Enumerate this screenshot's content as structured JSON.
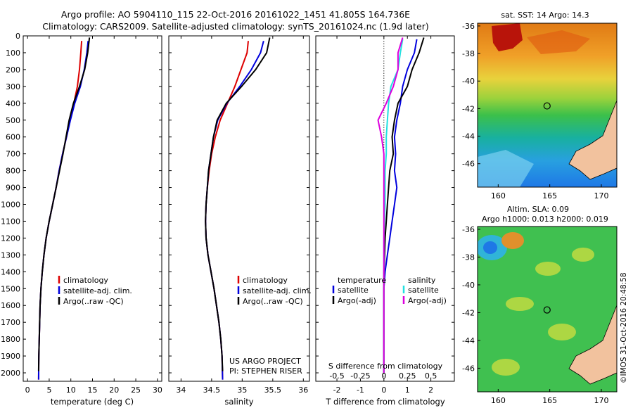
{
  "header": {
    "title_line1": "Argo profile: AO 5904110_115 22-Oct-2016 20161022_1451 41.805S 164.736E",
    "title_line2": "Climatology: CARS2009. Satellite-adjusted climatology: synTS_20161024.nc (1.9d later)"
  },
  "colors": {
    "climatology": "#dd0000",
    "satellite": "#0000dd",
    "argo": "#000000",
    "satellite_salinity": "#22e0e0",
    "argo_salinity": "#dd00dd",
    "land": "#f2c29e"
  },
  "legend_profiles": {
    "climatology": "climatology",
    "satellite": "satellite-adj. clim.",
    "argo": "Argo(..raw -QC)"
  },
  "legend_diff": {
    "temp_header": "temperature",
    "sal_header": "salinity",
    "satellite": "satellite",
    "argo": "Argo(-adj)"
  },
  "project": {
    "line1": "US ARGO PROJECT",
    "line2": "PI: STEPHEN RISER"
  },
  "credit": "©IMOS 31-Oct-2016 20:48:58",
  "chart_data": [
    {
      "type": "line",
      "xlabel": "temperature (deg C)",
      "xlim": [
        -1,
        31
      ],
      "xticks": [
        0,
        5,
        10,
        15,
        20,
        25,
        30
      ],
      "ylim": [
        2050,
        0
      ],
      "yticks": [
        0,
        100,
        200,
        300,
        400,
        500,
        600,
        700,
        800,
        900,
        1000,
        1100,
        1200,
        1300,
        1400,
        1500,
        1600,
        1700,
        1800,
        1900,
        2000
      ],
      "series": [
        {
          "name": "climatology",
          "key": "clim",
          "x": [
            12.5,
            12.3,
            12.0,
            11.5,
            10.7,
            9.8,
            9.0,
            8.1,
            7.3,
            6.6,
            5.8,
            5.0,
            4.3,
            3.8,
            3.4,
            3.1,
            2.9,
            2.8,
            2.7,
            2.6,
            2.55
          ],
          "y": [
            30,
            100,
            200,
            300,
            400,
            500,
            600,
            700,
            800,
            900,
            1000,
            1100,
            1200,
            1300,
            1400,
            1500,
            1600,
            1700,
            1800,
            1900,
            2040
          ]
        },
        {
          "name": "satellite-adj. clim.",
          "key": "sat",
          "x": [
            14.0,
            13.7,
            13.1,
            12.2,
            10.9,
            9.9,
            9.0,
            8.1,
            7.3,
            6.6,
            5.8,
            5.0,
            4.3,
            3.8,
            3.4,
            3.1,
            2.9,
            2.8,
            2.7,
            2.6,
            2.55
          ],
          "y": [
            30,
            100,
            200,
            300,
            400,
            500,
            600,
            700,
            800,
            900,
            1000,
            1100,
            1200,
            1300,
            1400,
            1500,
            1600,
            1700,
            1800,
            1900,
            2040
          ]
        },
        {
          "name": "Argo(..raw -QC)",
          "key": "argo",
          "x": [
            14.3,
            13.9,
            13.2,
            12.0,
            10.6,
            9.6,
            8.9,
            8.2,
            7.4,
            6.6,
            5.8,
            5.0,
            4.3,
            3.8,
            3.4,
            3.1,
            2.9,
            2.8,
            2.7,
            2.6,
            2.55
          ],
          "y": [
            10,
            100,
            200,
            300,
            400,
            500,
            600,
            700,
            800,
            900,
            1000,
            1100,
            1200,
            1300,
            1400,
            1500,
            1600,
            1700,
            1800,
            1900,
            1990
          ]
        }
      ]
    },
    {
      "type": "line",
      "xlabel": "salinity",
      "xlim": [
        33.8,
        36.1
      ],
      "xticks": [
        34,
        34.5,
        35,
        35.5,
        36
      ],
      "ylim": [
        2050,
        0
      ],
      "series": [
        {
          "name": "climatology",
          "key": "clim",
          "x": [
            35.1,
            35.08,
            34.98,
            34.88,
            34.76,
            34.64,
            34.56,
            34.5,
            34.46,
            34.43,
            34.41,
            34.4,
            34.41,
            34.44,
            34.49,
            34.54,
            34.58,
            34.62,
            34.65,
            34.67,
            34.68
          ],
          "y": [
            30,
            100,
            200,
            300,
            400,
            500,
            600,
            700,
            800,
            900,
            1000,
            1100,
            1200,
            1300,
            1400,
            1500,
            1600,
            1700,
            1800,
            1900,
            2040
          ]
        },
        {
          "name": "satellite-adj. clim.",
          "key": "sat",
          "x": [
            35.35,
            35.3,
            35.15,
            34.96,
            34.75,
            34.6,
            34.53,
            34.49,
            34.45,
            34.43,
            34.41,
            34.4,
            34.41,
            34.44,
            34.49,
            34.54,
            34.58,
            34.62,
            34.65,
            34.67,
            34.68
          ],
          "y": [
            30,
            100,
            200,
            300,
            400,
            500,
            600,
            700,
            800,
            900,
            1000,
            1100,
            1200,
            1300,
            1400,
            1500,
            1600,
            1700,
            1800,
            1900,
            2040
          ]
        },
        {
          "name": "Argo(..raw -QC)",
          "key": "argo",
          "x": [
            35.45,
            35.4,
            35.22,
            34.99,
            34.74,
            34.59,
            34.53,
            34.49,
            34.45,
            34.43,
            34.41,
            34.4,
            34.41,
            34.44,
            34.49,
            34.54,
            34.58,
            34.62,
            34.65,
            34.67,
            34.68
          ],
          "y": [
            10,
            100,
            200,
            300,
            400,
            500,
            600,
            700,
            800,
            900,
            1000,
            1100,
            1200,
            1300,
            1400,
            1500,
            1600,
            1700,
            1800,
            1900,
            1990
          ]
        }
      ]
    },
    {
      "type": "line",
      "xlabel": "T difference from climatology",
      "xlabel_top": "S difference from climatology",
      "xlim": [
        -2.9,
        3.0
      ],
      "xticks": [
        -2,
        -1,
        0,
        1,
        2
      ],
      "xticks_top": [
        {
          "label": "-0.5",
          "at": -2
        },
        {
          "label": "-0.25",
          "at": -1
        },
        {
          "label": "0",
          "at": 0
        },
        {
          "label": "0.25",
          "at": 1
        },
        {
          "label": "0.5",
          "at": 2
        }
      ],
      "ylim": [
        2050,
        0
      ],
      "series": [
        {
          "name": "satellite (temperature)",
          "key": "sat",
          "x": [
            1.4,
            1.3,
            1.0,
            0.8,
            0.7,
            0.55,
            0.45,
            0.5,
            0.45,
            0.55,
            0.45,
            0.35,
            0.25,
            0.15,
            0.05,
            0.0,
            0.0,
            0.0,
            0.0,
            0.0,
            0.0
          ],
          "y": [
            20,
            100,
            200,
            300,
            400,
            500,
            600,
            700,
            800,
            900,
            1000,
            1100,
            1200,
            1300,
            1400,
            1500,
            1600,
            1700,
            1800,
            1900,
            2000
          ]
        },
        {
          "name": "Argo(-adj) (temperature)",
          "key": "argo",
          "x": [
            1.7,
            1.5,
            1.2,
            1.0,
            0.6,
            0.45,
            0.35,
            0.4,
            0.25,
            0.2,
            0.15,
            0.1,
            0.05,
            0.03,
            0.0,
            0.0,
            0.0,
            0.0,
            0.0,
            0.0,
            0.0
          ],
          "y": [
            10,
            100,
            200,
            300,
            400,
            500,
            600,
            700,
            800,
            900,
            1000,
            1100,
            1200,
            1300,
            1400,
            1500,
            1600,
            1700,
            1800,
            1900,
            2000
          ]
        },
        {
          "name": "satellite (salinity)",
          "key": "ssat",
          "x": [
            0.8,
            0.7,
            0.6,
            0.3,
            0.2,
            0.15,
            0.1,
            0.1,
            0.05,
            0.05,
            0.05,
            0.02,
            0.0,
            0.0,
            0.0,
            0.0,
            0.0,
            0.0,
            0.0,
            0.0,
            0.0
          ],
          "y": [
            20,
            100,
            200,
            300,
            400,
            500,
            600,
            700,
            800,
            900,
            1000,
            1100,
            1200,
            1300,
            1400,
            1500,
            1600,
            1700,
            1800,
            1900,
            2000
          ]
        },
        {
          "name": "Argo(-adj) (salinity)",
          "key": "sargo",
          "x": [
            0.8,
            0.6,
            0.6,
            0.4,
            0.1,
            -0.25,
            -0.1,
            0.0,
            0.0,
            0.0,
            0.0,
            0.0,
            0.0,
            0.0,
            0.0,
            0.0,
            0.0,
            0.0,
            0.0,
            0.0,
            0.0
          ],
          "y": [
            10,
            100,
            200,
            300,
            400,
            500,
            600,
            700,
            800,
            900,
            1000,
            1100,
            1200,
            1300,
            1400,
            1500,
            1600,
            1700,
            1800,
            1900,
            2000
          ]
        }
      ]
    },
    {
      "type": "heatmap",
      "title": "sat. SST: 14 Argo: 14.3",
      "xlim": [
        158,
        171.5
      ],
      "xticks": [
        160,
        165,
        170
      ],
      "ylim": [
        -47.7,
        -35.8
      ],
      "yticks": [
        -36,
        -38,
        -40,
        -42,
        -44,
        -46
      ],
      "marker": {
        "lon": 164.736,
        "lat": -41.805
      }
    },
    {
      "type": "heatmap",
      "title_line1": "Altim. SLA: 0.09",
      "title_line2": "Argo h1000: 0.013 h2000: 0.019",
      "xlim": [
        158,
        171.5
      ],
      "xticks": [
        160,
        165,
        170
      ],
      "ylim": [
        -47.7,
        -35.8
      ],
      "yticks": [
        -36,
        -38,
        -40,
        -42,
        -44,
        -46
      ],
      "marker": {
        "lon": 164.736,
        "lat": -41.805
      }
    }
  ]
}
